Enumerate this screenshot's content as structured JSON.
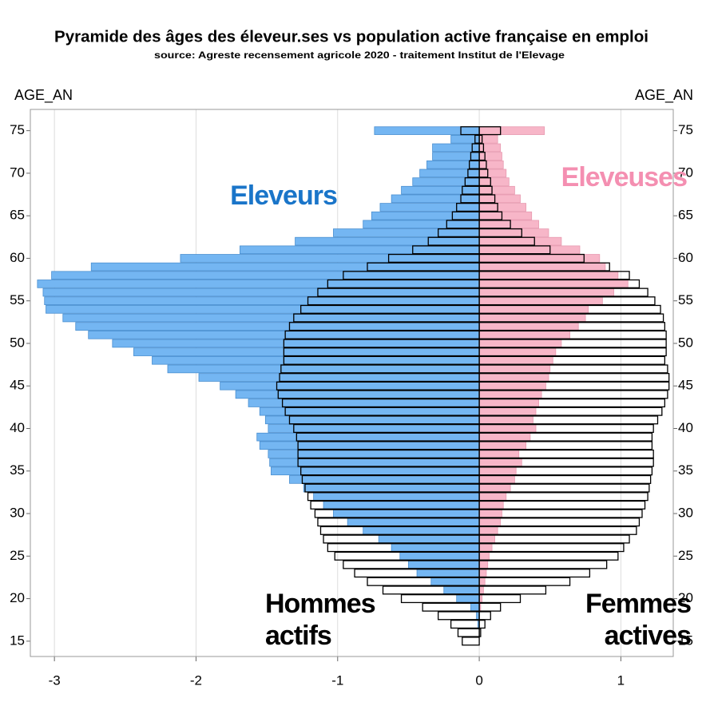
{
  "chart_data": {
    "type": "pyramid",
    "title": "Pyramide des âges des éleveur.ses vs population active française en emploi",
    "subtitle": "source: Agreste recensement agricole 2020 - traitement Institut de l'Elevage",
    "y_label": "AGE_AN",
    "y2_label": "AGE_AN",
    "y": [
      15,
      16,
      17,
      18,
      19,
      20,
      21,
      22,
      23,
      24,
      25,
      26,
      27,
      28,
      29,
      30,
      31,
      32,
      33,
      34,
      35,
      36,
      37,
      38,
      39,
      40,
      41,
      42,
      43,
      44,
      45,
      46,
      47,
      48,
      49,
      50,
      51,
      52,
      53,
      54,
      55,
      56,
      57,
      58,
      59,
      60,
      61,
      62,
      63,
      64,
      65,
      66,
      67,
      68,
      69,
      70,
      71,
      72,
      73,
      74,
      75
    ],
    "series": [
      {
        "name": "Eleveurs",
        "color": "#74b6f2",
        "values": [
          0,
          0,
          -0.01,
          -0.02,
          -0.06,
          -0.16,
          -0.25,
          -0.34,
          -0.44,
          -0.5,
          -0.56,
          -0.62,
          -0.71,
          -0.82,
          -0.93,
          -1.03,
          -1.1,
          -1.17,
          -1.24,
          -1.34,
          -1.47,
          -1.48,
          -1.49,
          -1.55,
          -1.57,
          -1.49,
          -1.51,
          -1.55,
          -1.63,
          -1.72,
          -1.83,
          -1.98,
          -2.2,
          -2.31,
          -2.44,
          -2.59,
          -2.76,
          -2.85,
          -2.94,
          -3.06,
          -3.07,
          -3.08,
          -3.12,
          -3.02,
          -2.74,
          -2.11,
          -1.69,
          -1.3,
          -1.03,
          -0.82,
          -0.76,
          -0.7,
          -0.62,
          -0.55,
          -0.47,
          -0.42,
          -0.37,
          -0.33,
          -0.33,
          -0.2,
          -0.74
        ]
      },
      {
        "name": "Eleveuses",
        "color": "#f7b6c8",
        "values": [
          0,
          0,
          0,
          0,
          0.01,
          0.02,
          0.03,
          0.04,
          0.05,
          0.06,
          0.07,
          0.09,
          0.11,
          0.13,
          0.15,
          0.16,
          0.17,
          0.19,
          0.22,
          0.25,
          0.26,
          0.3,
          0.28,
          0.33,
          0.36,
          0.4,
          0.38,
          0.4,
          0.42,
          0.44,
          0.47,
          0.49,
          0.5,
          0.52,
          0.54,
          0.58,
          0.64,
          0.7,
          0.75,
          0.77,
          0.87,
          0.95,
          1.05,
          0.98,
          0.89,
          0.85,
          0.71,
          0.58,
          0.49,
          0.42,
          0.37,
          0.33,
          0.29,
          0.25,
          0.21,
          0.19,
          0.17,
          0.16,
          0.15,
          0.13,
          0.46
        ]
      },
      {
        "name": "Hommes actifs",
        "color": "#000000",
        "values": [
          -0.12,
          -0.15,
          -0.2,
          -0.29,
          -0.4,
          -0.55,
          -0.68,
          -0.79,
          -0.88,
          -0.96,
          -1.02,
          -1.07,
          -1.1,
          -1.12,
          -1.14,
          -1.16,
          -1.19,
          -1.21,
          -1.23,
          -1.25,
          -1.26,
          -1.28,
          -1.28,
          -1.28,
          -1.29,
          -1.31,
          -1.34,
          -1.37,
          -1.39,
          -1.42,
          -1.43,
          -1.41,
          -1.4,
          -1.38,
          -1.38,
          -1.38,
          -1.37,
          -1.34,
          -1.31,
          -1.26,
          -1.21,
          -1.14,
          -1.07,
          -0.96,
          -0.79,
          -0.64,
          -0.47,
          -0.36,
          -0.29,
          -0.23,
          -0.19,
          -0.16,
          -0.13,
          -0.12,
          -0.1,
          -0.08,
          -0.07,
          -0.06,
          -0.05,
          -0.03,
          -0.13
        ]
      },
      {
        "name": "Femmes actives",
        "color": "#000000",
        "values": [
          0,
          0.01,
          0.04,
          0.08,
          0.15,
          0.29,
          0.47,
          0.64,
          0.78,
          0.9,
          0.98,
          1.02,
          1.06,
          1.11,
          1.13,
          1.15,
          1.17,
          1.19,
          1.2,
          1.21,
          1.22,
          1.23,
          1.23,
          1.22,
          1.22,
          1.23,
          1.26,
          1.29,
          1.31,
          1.33,
          1.34,
          1.34,
          1.33,
          1.31,
          1.32,
          1.32,
          1.32,
          1.31,
          1.3,
          1.28,
          1.24,
          1.19,
          1.13,
          1.06,
          0.92,
          0.74,
          0.5,
          0.39,
          0.3,
          0.22,
          0.16,
          0.13,
          0.11,
          0.09,
          0.08,
          0.06,
          0.05,
          0.04,
          0.03,
          0.02,
          0.15
        ]
      }
    ],
    "annotation_colors": [
      "#1a75c9",
      "#f48fb1",
      "#000000",
      "#000000"
    ],
    "xlim": [
      -3.17,
      1.37
    ],
    "xticks": [
      -3,
      -2,
      -1,
      0,
      1
    ],
    "ylim": [
      13.2,
      77.5
    ],
    "yticks": [
      15,
      20,
      25,
      30,
      35,
      40,
      45,
      50,
      55,
      60,
      65,
      70,
      75
    ],
    "grid": true
  }
}
